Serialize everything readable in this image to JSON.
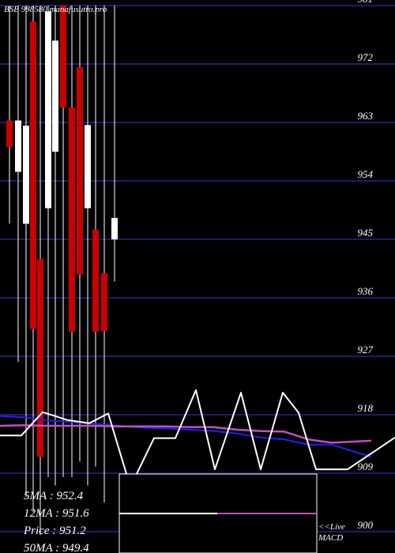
{
  "header": {
    "title": "BSE 988580 manafusutro.pro"
  },
  "colors": {
    "background": "#000000",
    "grid": "#1c1c6e",
    "up_candle": "#ffffff",
    "down_candle": "#cc0000",
    "ma_short": "#2020ff",
    "ma_long": "#c050c0",
    "macd_line": "#ffffff",
    "text": "#ffffff"
  },
  "stats": {
    "ma5": "5MA  : 952.4",
    "ma12": "12MA : 951.6",
    "price": "Price   : 951.2",
    "ma50": "50MA : 949.4"
  },
  "macd_label": {
    "line1": "<<Live",
    "line2": "MACD"
  },
  "chart_data": {
    "type": "candlestick",
    "title": "BSE 988580 manafusutro.pro",
    "y_ticks": [
      981,
      972,
      963,
      954,
      945,
      936,
      927,
      918,
      909,
      900
    ],
    "ylim": [
      899.5,
      982
    ],
    "grid": true,
    "candles": [
      {
        "x": 12,
        "open": 963.3,
        "close": 959.2,
        "high": 981,
        "low": 947.4,
        "dir": "down"
      },
      {
        "x": 23,
        "open": 955.4,
        "close": 963.3,
        "high": 981,
        "low": 926.1,
        "dir": "up"
      },
      {
        "x": 33,
        "open": 947.4,
        "close": 962.5,
        "high": 981,
        "low": 905.3,
        "dir": "up"
      },
      {
        "x": 42,
        "open": 978.5,
        "close": 931.2,
        "high": 981,
        "low": 903.0,
        "dir": "down"
      },
      {
        "x": 51,
        "open": 942.0,
        "close": 911.5,
        "high": 981,
        "low": 899.5,
        "dir": "down"
      },
      {
        "x": 61,
        "open": 949.8,
        "close": 980.1,
        "high": 981,
        "low": 908.4,
        "dir": "up"
      },
      {
        "x": 70,
        "open": 958.5,
        "close": 975.6,
        "high": 981,
        "low": 907.1,
        "dir": "up"
      },
      {
        "x": 80,
        "open": 981.0,
        "close": 965.3,
        "high": 981,
        "low": 908.4,
        "dir": "down"
      },
      {
        "x": 91,
        "open": 965.3,
        "close": 930.8,
        "high": 981,
        "low": 908.4,
        "dir": "down"
      },
      {
        "x": 101,
        "open": 971.5,
        "close": 939.6,
        "high": 981,
        "low": 910.8,
        "dir": "down"
      },
      {
        "x": 111,
        "open": 949.8,
        "close": 962.6,
        "high": 981,
        "low": 907.1,
        "dir": "up"
      },
      {
        "x": 121,
        "open": 946.5,
        "close": 930.8,
        "high": 981,
        "low": 910.0,
        "dir": "down"
      },
      {
        "x": 132,
        "open": 939.8,
        "close": 930.9,
        "high": 981,
        "low": 904.5,
        "dir": "down"
      },
      {
        "x": 145,
        "open": 945.0,
        "close": 948.3,
        "high": 981,
        "low": 938.5,
        "dir": "up"
      }
    ],
    "series": [
      {
        "name": "5MA",
        "y": [
          917.8,
          917.6,
          917.1,
          916.9,
          916.6,
          916.3,
          916.0,
          915.9,
          915.7,
          915.5,
          915.1,
          914.5,
          914.2,
          913.4,
          913.4,
          911.5
        ]
      },
      {
        "name": "12MA",
        "y": [
          916.3,
          916.4,
          916.3,
          916.3,
          916.3,
          916.2,
          916.2,
          916.2,
          916.1,
          916.1,
          915.7,
          915.5,
          915.4,
          914.2,
          913.7,
          914.0
        ]
      },
      {
        "name": "MACD",
        "y": [
          914.8,
          914.8,
          918.4,
          917.2,
          916.7,
          918.2,
          906.9,
          914.4,
          914.4,
          921.8,
          909.6,
          921.4,
          909.6,
          921.4,
          918.3,
          909.6,
          909.6,
          914.5
        ]
      }
    ]
  }
}
